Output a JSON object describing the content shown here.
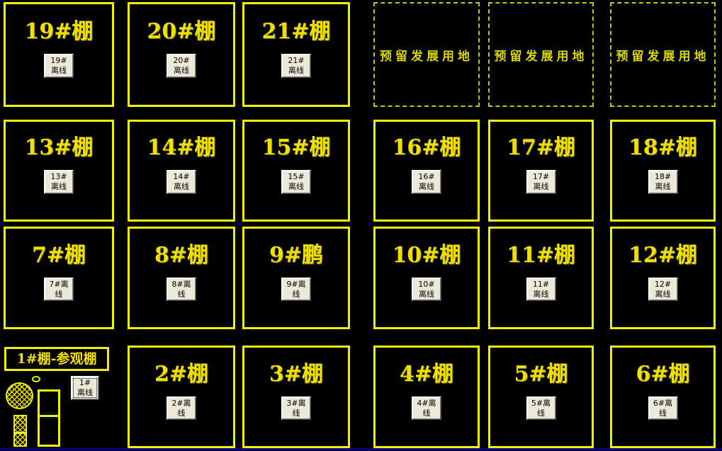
{
  "colors": {
    "background": "#000000",
    "border_solid": "#F0F000",
    "border_dashed": "#C6C600",
    "title_text": "#EFE000",
    "reserved_text": "#D8D800",
    "button_bg": "#ECE9D8",
    "button_text": "#000000",
    "bottom_line": "#000090"
  },
  "sheds": [
    {
      "title": "19#棚",
      "button_line1": "19#",
      "button_line2": "离线",
      "row": 0,
      "col": 0
    },
    {
      "title": "20#棚",
      "button_line1": "20#",
      "button_line2": "离线",
      "row": 0,
      "col": 1
    },
    {
      "title": "21#棚",
      "button_line1": "21#",
      "button_line2": "离线",
      "row": 0,
      "col": 2
    },
    {
      "title": "13#棚",
      "button_line1": "13#",
      "button_line2": "离线",
      "row": 1,
      "col": 0
    },
    {
      "title": "14#棚",
      "button_line1": "14#",
      "button_line2": "离线",
      "row": 1,
      "col": 1
    },
    {
      "title": "15#棚",
      "button_line1": "15#",
      "button_line2": "离线",
      "row": 1,
      "col": 2
    },
    {
      "title": "16#棚",
      "button_line1": "16#",
      "button_line2": "离线",
      "row": 1,
      "col": 3
    },
    {
      "title": "17#棚",
      "button_line1": "17#",
      "button_line2": "离线",
      "row": 1,
      "col": 4
    },
    {
      "title": "18#棚",
      "button_line1": "18#",
      "button_line2": "离线",
      "row": 1,
      "col": 5
    },
    {
      "title": "7#棚",
      "button_line1": "7#离",
      "button_line2": "线",
      "row": 2,
      "col": 0
    },
    {
      "title": "8#棚",
      "button_line1": "8#离",
      "button_line2": "线",
      "row": 2,
      "col": 1
    },
    {
      "title": "9#鹏",
      "button_line1": "9#离",
      "button_line2": "线",
      "row": 2,
      "col": 2
    },
    {
      "title": "10#棚",
      "button_line1": "10#",
      "button_line2": "离线",
      "row": 2,
      "col": 3
    },
    {
      "title": "11#棚",
      "button_line1": "11#",
      "button_line2": "离线",
      "row": 2,
      "col": 4
    },
    {
      "title": "12#棚",
      "button_line1": "12#",
      "button_line2": "离线",
      "row": 2,
      "col": 5
    },
    {
      "title": "2#棚",
      "button_line1": "2#离",
      "button_line2": "线",
      "row": 3,
      "col": 1
    },
    {
      "title": "3#棚",
      "button_line1": "3#离",
      "button_line2": "线",
      "row": 3,
      "col": 2
    },
    {
      "title": "4#棚",
      "button_line1": "4#离",
      "button_line2": "线",
      "row": 3,
      "col": 3
    },
    {
      "title": "5#棚",
      "button_line1": "5#离",
      "button_line2": "线",
      "row": 3,
      "col": 4
    },
    {
      "title": "6#棚",
      "button_line1": "6#离",
      "button_line2": "线",
      "row": 3,
      "col": 5
    }
  ],
  "reserved": {
    "label": "预留发展用地",
    "boxes": [
      {
        "row": 0,
        "col": 3
      },
      {
        "row": 0,
        "col": 4
      },
      {
        "row": 0,
        "col": 5
      }
    ]
  },
  "special": {
    "title": "1#棚-参观棚",
    "button_line1": "1#",
    "button_line2": "离线"
  }
}
